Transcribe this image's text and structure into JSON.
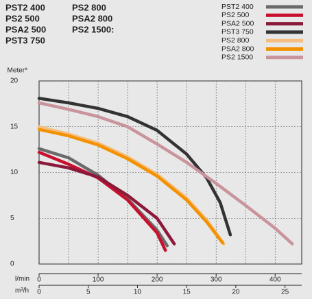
{
  "models": [
    [
      "PST2 400",
      "PS2 500",
      "PSA2 500",
      "PST3 750"
    ],
    [
      "PS2 800",
      "PSA2 800",
      "PS2 1500:"
    ]
  ],
  "chart_data": {
    "type": "line",
    "y_label": "Meter*",
    "x_label": "l/min",
    "x2_label": "m³/h",
    "xlim": [
      0,
      445
    ],
    "xticks": [
      0,
      100,
      200,
      300,
      400
    ],
    "x_grid": [
      50,
      100,
      150,
      200,
      250,
      300,
      350,
      400
    ],
    "x2lim": [
      0,
      26.7
    ],
    "x2ticks": [
      0,
      5,
      10,
      15,
      20,
      25
    ],
    "ylim": [
      0,
      20
    ],
    "yticks": [
      0,
      5,
      10,
      15,
      20
    ],
    "grid": true,
    "series": [
      {
        "name": "PST2 400",
        "color": "#6a6a6a",
        "x": [
          0,
          50,
          100,
          150,
          200,
          217
        ],
        "values": [
          12.6,
          11.6,
          9.7,
          7.1,
          3.7,
          2.0
        ]
      },
      {
        "name": "PS2 500",
        "color": "#c8102e",
        "x": [
          0,
          50,
          100,
          150,
          200,
          214
        ],
        "values": [
          12.2,
          10.9,
          9.4,
          7.0,
          3.4,
          1.5
        ]
      },
      {
        "name": "PSA2 500",
        "color": "#8b1a3a",
        "x": [
          0,
          50,
          100,
          150,
          200,
          229
        ],
        "values": [
          11.1,
          10.5,
          9.5,
          7.5,
          5.0,
          2.2
        ]
      },
      {
        "name": "PST3 750",
        "color": "#333333",
        "x": [
          0,
          50,
          100,
          150,
          200,
          250,
          284,
          307,
          324
        ],
        "values": [
          18.1,
          17.6,
          17.0,
          16.1,
          14.6,
          12.0,
          9.4,
          6.7,
          3.2
        ]
      },
      {
        "name": "PS2 800",
        "color": "#f5bd80",
        "x": [
          0,
          50,
          100,
          150,
          200,
          250,
          284,
          313
        ],
        "values": [
          15.0,
          14.2,
          13.2,
          11.7,
          9.8,
          7.2,
          4.8,
          2.2
        ]
      },
      {
        "name": "PSA2 800",
        "color": "#f39200",
        "x": [
          0,
          50,
          100,
          150,
          200,
          250,
          284,
          311
        ],
        "values": [
          14.7,
          14.0,
          13.0,
          11.5,
          9.6,
          7.0,
          4.6,
          2.3
        ]
      },
      {
        "name": "PS2 1500",
        "color": "#c9949c",
        "x": [
          0,
          50,
          100,
          150,
          200,
          250,
          300,
          350,
          400,
          429
        ],
        "values": [
          17.6,
          16.9,
          16.1,
          15.0,
          13.1,
          11.1,
          8.8,
          6.4,
          3.9,
          2.2
        ]
      }
    ]
  }
}
